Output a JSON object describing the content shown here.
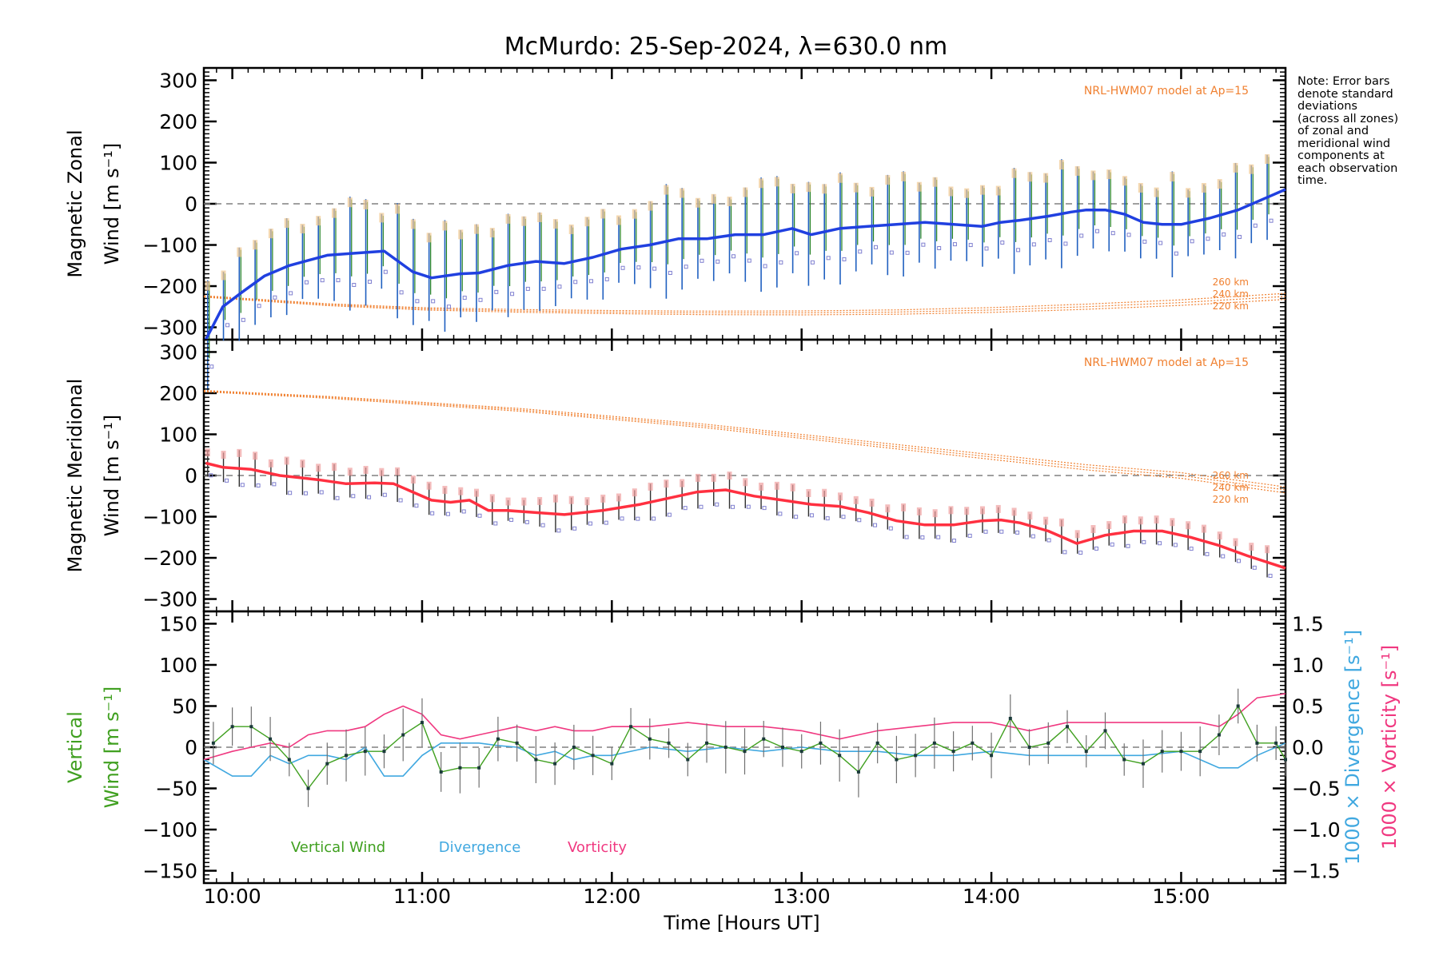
{
  "chart_data": [
    {
      "panel": "zonal",
      "type": "line",
      "title": "McMurdo: 25-Sep-2024, λ=630.0 nm",
      "ylabel": [
        "Magnetic Zonal",
        "Wind [m s⁻¹]"
      ],
      "ylim": [
        -330,
        330
      ],
      "yticks": [
        "300",
        "200",
        "100",
        "0",
        "−100",
        "−200",
        "−300"
      ],
      "ytick_values": [
        300,
        200,
        100,
        0,
        -100,
        -200,
        -300
      ],
      "zero_line": true,
      "model_label": "NRL-HWM07 model at Ap=15",
      "model_altitudes": [
        "260 km",
        "240 km",
        "220 km"
      ],
      "series": [
        {
          "name": "Magnetic Zonal Wind",
          "color": "#2040e0",
          "x": [
            9.86,
            9.95,
            10.05,
            10.17,
            10.3,
            10.5,
            10.65,
            10.8,
            10.95,
            11.05,
            11.2,
            11.3,
            11.45,
            11.6,
            11.75,
            11.9,
            12.05,
            12.2,
            12.35,
            12.5,
            12.65,
            12.8,
            12.95,
            13.05,
            13.2,
            13.35,
            13.5,
            13.65,
            13.8,
            13.95,
            14.05,
            14.15,
            14.3,
            14.42,
            14.5,
            14.6,
            14.7,
            14.8,
            14.9,
            15.0,
            15.15,
            15.3,
            15.45,
            15.55
          ],
          "values": [
            -330,
            -250,
            -215,
            -175,
            -150,
            -125,
            -120,
            -115,
            -165,
            -180,
            -170,
            -168,
            -150,
            -140,
            -145,
            -130,
            -110,
            -100,
            -85,
            -85,
            -75,
            -75,
            -60,
            -75,
            -60,
            -55,
            -50,
            -45,
            -50,
            -55,
            -45,
            -40,
            -30,
            -20,
            -15,
            -15,
            -25,
            -45,
            -50,
            -50,
            -35,
            -15,
            15,
            35
          ]
        },
        {
          "name": "HWM07 model",
          "color": "#f08030",
          "x": [
            9.85,
            10.5,
            11.0,
            11.5,
            12.0,
            12.5,
            13.0,
            13.5,
            14.0,
            14.5,
            15.0,
            15.55
          ],
          "values": [
            -225,
            -245,
            -255,
            -260,
            -263,
            -265,
            -265,
            -263,
            -258,
            -250,
            -240,
            -225
          ]
        }
      ]
    },
    {
      "panel": "meridional",
      "type": "line",
      "ylabel": [
        "Magnetic Meridional",
        "Wind [m s⁻¹]"
      ],
      "ylim": [
        -330,
        330
      ],
      "yticks": [
        "300",
        "200",
        "100",
        "0",
        "−100",
        "−200",
        "−300"
      ],
      "ytick_values": [
        300,
        200,
        100,
        0,
        -100,
        -200,
        -300
      ],
      "zero_line": true,
      "model_label": "NRL-HWM07 model at Ap=15",
      "model_altitudes": [
        "260 km",
        "240 km",
        "220 km"
      ],
      "series": [
        {
          "name": "Magnetic Meridional Wind",
          "color": "#ff3040",
          "x": [
            9.86,
            9.95,
            10.1,
            10.25,
            10.45,
            10.6,
            10.75,
            10.85,
            10.95,
            11.05,
            11.15,
            11.25,
            11.35,
            11.45,
            11.6,
            11.75,
            11.95,
            12.15,
            12.3,
            12.45,
            12.6,
            12.75,
            12.9,
            13.05,
            13.2,
            13.35,
            13.5,
            13.65,
            13.8,
            13.95,
            14.05,
            14.15,
            14.3,
            14.45,
            14.6,
            14.75,
            14.9,
            15.05,
            15.2,
            15.35,
            15.55
          ],
          "values": [
            30,
            20,
            15,
            0,
            -10,
            -20,
            -18,
            -20,
            -40,
            -60,
            -65,
            -60,
            -85,
            -85,
            -90,
            -95,
            -85,
            -70,
            -55,
            -40,
            -35,
            -50,
            -60,
            -70,
            -75,
            -90,
            -110,
            -120,
            -120,
            -110,
            -108,
            -115,
            -135,
            -165,
            -145,
            -135,
            -135,
            -150,
            -170,
            -195,
            -225
          ]
        },
        {
          "name": "HWM07 model",
          "color": "#f08030",
          "x": [
            9.85,
            10.5,
            11.0,
            11.5,
            12.0,
            12.5,
            13.0,
            13.5,
            14.0,
            14.5,
            15.0,
            15.55
          ],
          "values": [
            205,
            190,
            175,
            160,
            140,
            120,
            95,
            70,
            45,
            20,
            0,
            -35
          ]
        }
      ]
    },
    {
      "panel": "vertical",
      "type": "line",
      "ylabel": [
        "Vertical",
        "Wind [m s⁻¹]"
      ],
      "y2label": "1000 × Divergence [s⁻¹]",
      "y3label": "1000 × Vorticity [s⁻¹]",
      "ylim": [
        -165,
        165
      ],
      "y2lim": [
        -1.65,
        1.65
      ],
      "yticks": [
        "150",
        "100",
        "50",
        "0",
        "−50",
        "−100",
        "−150"
      ],
      "ytick_values": [
        150,
        100,
        50,
        0,
        -50,
        -100,
        -150
      ],
      "y2ticks": [
        "1.5",
        "1.0",
        "0.5",
        "0.0",
        "−0.5",
        "−1.0",
        "−1.5"
      ],
      "y2tick_values": [
        1.5,
        1.0,
        0.5,
        0.0,
        -0.5,
        -1.0,
        -1.5
      ],
      "zero_line": true,
      "xlabel": "Time [Hours UT]",
      "xlim": [
        9.85,
        15.55
      ],
      "xticks": [
        "10:00",
        "11:00",
        "12:00",
        "13:00",
        "14:00",
        "15:00"
      ],
      "xtick_values": [
        10,
        11,
        12,
        13,
        14,
        15
      ],
      "legend": [
        "Vertical Wind",
        "Divergence",
        "Vorticity"
      ],
      "series": [
        {
          "name": "Vertical Wind",
          "color": "#40a020",
          "x": [
            9.9,
            10.0,
            10.1,
            10.2,
            10.3,
            10.4,
            10.5,
            10.6,
            10.7,
            10.8,
            10.9,
            11.0,
            11.1,
            11.2,
            11.3,
            11.4,
            11.5,
            11.6,
            11.7,
            11.8,
            11.9,
            12.0,
            12.1,
            12.2,
            12.3,
            12.4,
            12.5,
            12.6,
            12.7,
            12.8,
            12.9,
            13.0,
            13.1,
            13.2,
            13.3,
            13.4,
            13.5,
            13.6,
            13.7,
            13.8,
            13.9,
            14.0,
            14.1,
            14.2,
            14.3,
            14.4,
            14.5,
            14.6,
            14.7,
            14.8,
            14.9,
            15.0,
            15.1,
            15.2,
            15.3,
            15.4,
            15.5,
            15.55
          ],
          "values": [
            5,
            25,
            25,
            10,
            -15,
            -50,
            -20,
            -10,
            -5,
            -5,
            15,
            30,
            -30,
            -25,
            -25,
            10,
            5,
            -15,
            -20,
            0,
            -10,
            -20,
            25,
            10,
            5,
            -15,
            5,
            0,
            -5,
            10,
            0,
            -5,
            5,
            -10,
            -30,
            5,
            -15,
            -10,
            5,
            -5,
            5,
            -10,
            35,
            0,
            5,
            25,
            -5,
            20,
            -15,
            -20,
            -5,
            -5,
            -5,
            15,
            50,
            5,
            5,
            -15
          ]
        },
        {
          "name": "Divergence",
          "color": "#40a8e0",
          "x": [
            9.85,
            10.0,
            10.1,
            10.2,
            10.3,
            10.4,
            10.5,
            10.6,
            10.7,
            10.8,
            10.9,
            11.0,
            11.1,
            11.2,
            11.3,
            11.4,
            11.5,
            11.6,
            11.7,
            11.8,
            11.9,
            12.0,
            12.2,
            12.4,
            12.6,
            12.8,
            13.0,
            13.2,
            13.4,
            13.6,
            13.8,
            14.0,
            14.2,
            14.4,
            14.6,
            14.8,
            15.0,
            15.1,
            15.2,
            15.3,
            15.4,
            15.55
          ],
          "values": [
            -0.15,
            -0.35,
            -0.35,
            -0.1,
            -0.2,
            -0.1,
            -0.1,
            -0.15,
            0.0,
            -0.35,
            -0.35,
            -0.1,
            0.05,
            0.05,
            0.05,
            0.02,
            0.0,
            -0.1,
            -0.05,
            -0.15,
            -0.1,
            -0.1,
            0.0,
            -0.05,
            0.0,
            -0.05,
            0.0,
            -0.05,
            -0.05,
            -0.1,
            -0.1,
            -0.05,
            -0.1,
            -0.1,
            -0.1,
            -0.1,
            -0.05,
            -0.15,
            -0.25,
            -0.25,
            -0.1,
            0.05
          ]
        },
        {
          "name": "Vorticity",
          "color": "#f03880",
          "x": [
            9.85,
            10.0,
            10.1,
            10.2,
            10.3,
            10.4,
            10.5,
            10.6,
            10.7,
            10.8,
            10.9,
            11.0,
            11.1,
            11.2,
            11.3,
            11.4,
            11.5,
            11.6,
            11.7,
            11.8,
            11.9,
            12.0,
            12.2,
            12.4,
            12.6,
            12.8,
            13.0,
            13.2,
            13.4,
            13.6,
            13.8,
            14.0,
            14.2,
            14.4,
            14.6,
            14.8,
            15.0,
            15.1,
            15.2,
            15.3,
            15.4,
            15.55
          ],
          "values": [
            -0.15,
            -0.05,
            0.0,
            0.05,
            0.0,
            0.15,
            0.2,
            0.2,
            0.25,
            0.4,
            0.5,
            0.4,
            0.15,
            0.1,
            0.15,
            0.2,
            0.25,
            0.2,
            0.25,
            0.2,
            0.2,
            0.25,
            0.25,
            0.3,
            0.25,
            0.25,
            0.2,
            0.1,
            0.2,
            0.25,
            0.3,
            0.3,
            0.2,
            0.3,
            0.3,
            0.3,
            0.3,
            0.3,
            0.25,
            0.4,
            0.6,
            0.65
          ]
        }
      ]
    }
  ],
  "note_lines": [
    "Note: Error bars",
    "denote standard",
    "deviations",
    "(across all zones)",
    "of zonal and",
    "meridional wind",
    "components at",
    "each observation",
    "time."
  ],
  "colors": {
    "axis": "#000000",
    "zero_line": "#808080",
    "error_bar_zonal": "#2060c0",
    "error_bar_zonal_green": "#208020",
    "error_bar_meridional": "#303030",
    "model": "#f08030",
    "zone_marker": "#8080d0",
    "zone_pale": "#f0c890",
    "zone_pink": "#f0a0a0",
    "divergence_label": "#40a8e0",
    "vorticity_label": "#f03880",
    "vertical_label": "#40a020"
  }
}
